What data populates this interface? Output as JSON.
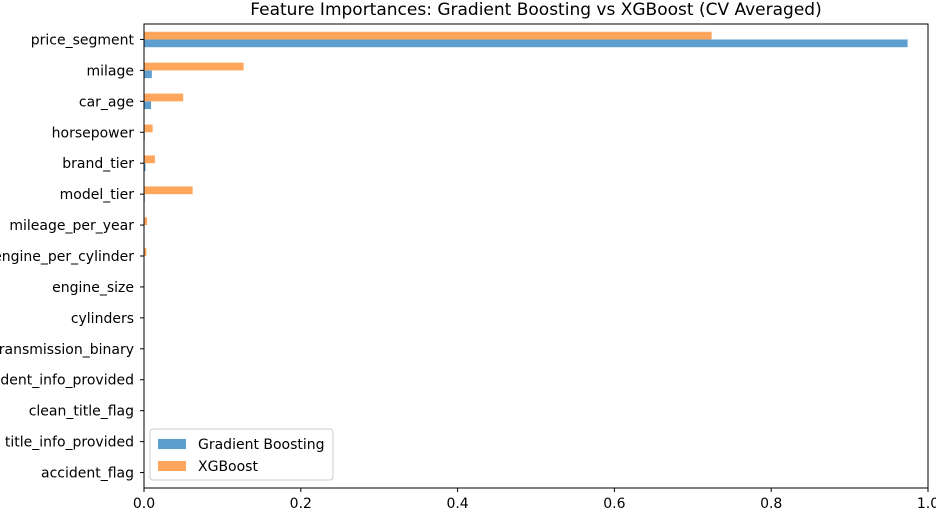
{
  "chart_data": {
    "type": "bar",
    "orientation": "horizontal",
    "title": "Feature Importances: Gradient Boosting vs XGBoost (CV Averaged)",
    "xlabel": "",
    "ylabel": "",
    "xlim": [
      0,
      1.0
    ],
    "xticks": [
      "0.0",
      "0.2",
      "0.4",
      "0.6",
      "0.8",
      "1.0"
    ],
    "categories": [
      "price_segment",
      "milage",
      "car_age",
      "horsepower",
      "brand_tier",
      "model_tier",
      "mileage_per_year",
      "engine_per_cylinder",
      "engine_size",
      "cylinders",
      "transmission_binary",
      "accident_info_provided",
      "clean_title_flag",
      "title_info_provided",
      "accident_flag"
    ],
    "series": [
      {
        "name": "Gradient Boosting",
        "color": "#5e9fcf",
        "values": [
          0.974,
          0.01,
          0.009,
          0.001,
          0.002,
          0.001,
          0.0005,
          0.0005,
          0.0003,
          0.0002,
          0.0001,
          0.0001,
          0.0001,
          0.0001,
          0.0001
        ]
      },
      {
        "name": "XGBoost",
        "color": "#ffa65c",
        "values": [
          0.724,
          0.127,
          0.05,
          0.011,
          0.014,
          0.062,
          0.004,
          0.003,
          0.0005,
          0.0003,
          0.0002,
          0.0002,
          0.0002,
          0.0001,
          0.0001
        ]
      }
    ],
    "grid": false,
    "legend_position": "lower-left"
  }
}
